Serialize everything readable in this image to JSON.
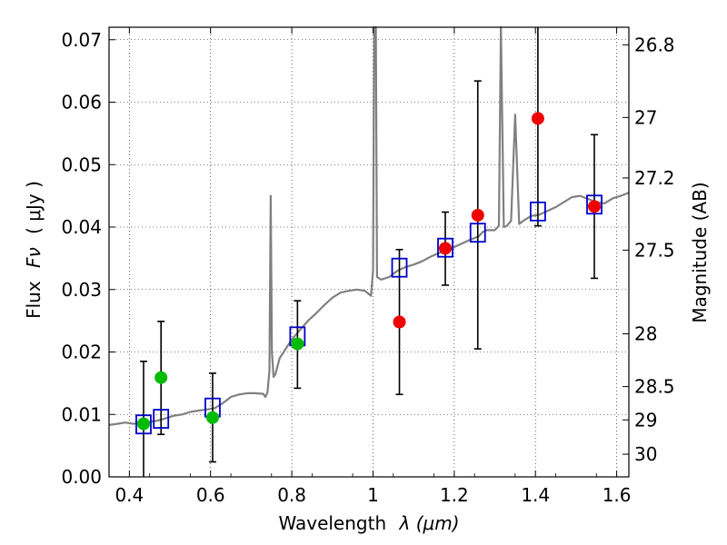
{
  "chart_data": {
    "type": "scatter",
    "title": "",
    "xlabel_text": "Wavelength",
    "xlabel_symbol": "λ (μm)",
    "ylabel_text": "Flux",
    "ylabel_symbol": "Fν",
    "ylabel_unit": "( μJy )",
    "y2label": "Magnitude (AB)",
    "xlim": [
      0.35,
      1.63
    ],
    "ylim": [
      0.0,
      0.072
    ],
    "grid": true,
    "x_ticks": [
      0.4,
      0.6,
      0.8,
      1.0,
      1.2,
      1.4,
      1.6
    ],
    "x_tick_labels": [
      "0.4",
      "0.6",
      "0.8",
      "1",
      "1.2",
      "1.4",
      "1.6"
    ],
    "y_ticks": [
      0.0,
      0.01,
      0.02,
      0.03,
      0.04,
      0.05,
      0.06,
      0.07
    ],
    "y_tick_labels": [
      "0.00",
      "0.01",
      "0.02",
      "0.03",
      "0.04",
      "0.05",
      "0.06",
      "0.07"
    ],
    "mag_ticks": [
      26.8,
      27,
      27.2,
      27.5,
      28,
      28.5,
      29,
      30
    ],
    "mag_tick_labels": [
      "26.8",
      "27",
      "27.2",
      "27.5",
      "28",
      "28.5",
      "29",
      "30"
    ],
    "colors": {
      "spectrum": "#808080",
      "model_box": "#0000cc",
      "green": "#00bb00",
      "red": "#ee0000",
      "errorbar": "#000000"
    },
    "spectrum": [
      [
        0.35,
        0.0083
      ],
      [
        0.37,
        0.0085
      ],
      [
        0.39,
        0.0087
      ],
      [
        0.41,
        0.0085
      ],
      [
        0.43,
        0.0087
      ],
      [
        0.45,
        0.0088
      ],
      [
        0.47,
        0.009
      ],
      [
        0.49,
        0.0094
      ],
      [
        0.51,
        0.0098
      ],
      [
        0.53,
        0.01
      ],
      [
        0.55,
        0.0104
      ],
      [
        0.57,
        0.0106
      ],
      [
        0.59,
        0.0108
      ],
      [
        0.61,
        0.011
      ],
      [
        0.63,
        0.0118
      ],
      [
        0.65,
        0.0128
      ],
      [
        0.67,
        0.0132
      ],
      [
        0.69,
        0.0134
      ],
      [
        0.71,
        0.0134
      ],
      [
        0.73,
        0.0133
      ],
      [
        0.735,
        0.0128
      ],
      [
        0.74,
        0.0135
      ],
      [
        0.745,
        0.017
      ],
      [
        0.748,
        0.045
      ],
      [
        0.751,
        0.02
      ],
      [
        0.755,
        0.016
      ],
      [
        0.76,
        0.0165
      ],
      [
        0.77,
        0.019
      ],
      [
        0.78,
        0.02
      ],
      [
        0.79,
        0.021
      ],
      [
        0.8,
        0.022
      ],
      [
        0.82,
        0.0235
      ],
      [
        0.84,
        0.025
      ],
      [
        0.86,
        0.0262
      ],
      [
        0.88,
        0.0275
      ],
      [
        0.9,
        0.0287
      ],
      [
        0.92,
        0.0295
      ],
      [
        0.94,
        0.0298
      ],
      [
        0.96,
        0.03
      ],
      [
        0.98,
        0.0298
      ],
      [
        0.995,
        0.029
      ],
      [
        1.0,
        0.033
      ],
      [
        1.003,
        0.072
      ],
      [
        1.007,
        0.072
      ],
      [
        1.01,
        0.032
      ],
      [
        1.02,
        0.0316
      ],
      [
        1.04,
        0.032
      ],
      [
        1.06,
        0.033
      ],
      [
        1.08,
        0.0336
      ],
      [
        1.1,
        0.034
      ],
      [
        1.12,
        0.0345
      ],
      [
        1.14,
        0.0352
      ],
      [
        1.16,
        0.0358
      ],
      [
        1.18,
        0.0362
      ],
      [
        1.2,
        0.0368
      ],
      [
        1.22,
        0.0374
      ],
      [
        1.24,
        0.038
      ],
      [
        1.26,
        0.0385
      ],
      [
        1.27,
        0.0392
      ],
      [
        1.28,
        0.0395
      ],
      [
        1.3,
        0.0395
      ],
      [
        1.31,
        0.0402
      ],
      [
        1.315,
        0.072
      ],
      [
        1.322,
        0.04
      ],
      [
        1.33,
        0.0402
      ],
      [
        1.34,
        0.041
      ],
      [
        1.35,
        0.058
      ],
      [
        1.36,
        0.0405
      ],
      [
        1.37,
        0.041
      ],
      [
        1.39,
        0.0418
      ],
      [
        1.41,
        0.042
      ],
      [
        1.43,
        0.0426
      ],
      [
        1.45,
        0.0432
      ],
      [
        1.47,
        0.044
      ],
      [
        1.49,
        0.0448
      ],
      [
        1.51,
        0.045
      ],
      [
        1.53,
        0.0445
      ],
      [
        1.55,
        0.044
      ],
      [
        1.57,
        0.0438
      ],
      [
        1.59,
        0.0446
      ],
      [
        1.61,
        0.045
      ],
      [
        1.63,
        0.0455
      ]
    ],
    "model_points": [
      {
        "x": 0.435,
        "y": 0.0084
      },
      {
        "x": 0.478,
        "y": 0.0093
      },
      {
        "x": 0.605,
        "y": 0.0111
      },
      {
        "x": 0.814,
        "y": 0.0225
      },
      {
        "x": 1.065,
        "y": 0.0335
      },
      {
        "x": 1.178,
        "y": 0.0367
      },
      {
        "x": 1.258,
        "y": 0.0391
      },
      {
        "x": 1.406,
        "y": 0.0425
      },
      {
        "x": 1.545,
        "y": 0.0436
      }
    ],
    "observed_points": [
      {
        "x": 0.435,
        "y": 0.0085,
        "err_lo": 0.0,
        "err_hi": 0.0185,
        "color": "green"
      },
      {
        "x": 0.478,
        "y": 0.0159,
        "err_lo": 0.0068,
        "err_hi": 0.0249,
        "color": "green"
      },
      {
        "x": 0.605,
        "y": 0.0095,
        "err_lo": 0.0024,
        "err_hi": 0.0166,
        "color": "green"
      },
      {
        "x": 0.814,
        "y": 0.0213,
        "err_lo": 0.0142,
        "err_hi": 0.0282,
        "color": "green"
      },
      {
        "x": 1.065,
        "y": 0.0248,
        "err_lo": 0.0132,
        "err_hi": 0.0364,
        "color": "red"
      },
      {
        "x": 1.178,
        "y": 0.0366,
        "err_lo": 0.0307,
        "err_hi": 0.0424,
        "color": "red"
      },
      {
        "x": 1.258,
        "y": 0.0419,
        "err_lo": 0.0205,
        "err_hi": 0.0634,
        "color": "red"
      },
      {
        "x": 1.406,
        "y": 0.0574,
        "err_lo": 0.0402,
        "err_hi": 0.072,
        "color": "red"
      },
      {
        "x": 1.545,
        "y": 0.0433,
        "err_lo": 0.0318,
        "err_hi": 0.0548,
        "color": "red"
      }
    ]
  }
}
